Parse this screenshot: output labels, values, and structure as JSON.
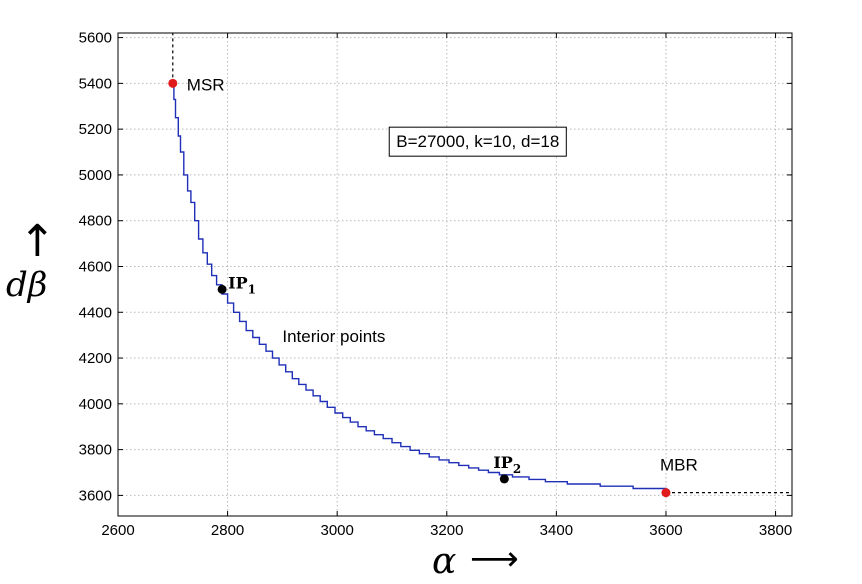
{
  "chart_data": {
    "type": "line",
    "title": "",
    "xlabel": "α",
    "ylabel": "dβ",
    "xlim": [
      2600,
      3830
    ],
    "ylim": [
      3510,
      5620
    ],
    "xticks": [
      2600,
      2800,
      3000,
      3200,
      3400,
      3600,
      3800
    ],
    "yticks": [
      3600,
      3800,
      4000,
      4200,
      4400,
      4600,
      4800,
      5000,
      5200,
      5400,
      5600
    ],
    "grid": true,
    "series": [
      {
        "style": "stair-line",
        "color": "#1f2fb8",
        "x": [
          2700,
          2702,
          2705,
          2710,
          2714,
          2720,
          2727,
          2733,
          2740,
          2747,
          2755,
          2763,
          2771,
          2780,
          2790,
          2800,
          2811,
          2822,
          2834,
          2846,
          2858,
          2870,
          2882,
          2894,
          2906,
          2918,
          2930,
          2943,
          2956,
          2969,
          2982,
          2996,
          3010,
          3024,
          3038,
          3053,
          3068,
          3084,
          3100,
          3116,
          3133,
          3150,
          3168,
          3186,
          3204,
          3222,
          3240,
          3258,
          3276,
          3296,
          3320,
          3350,
          3380,
          3420,
          3480,
          3540,
          3600
        ],
        "y": [
          5400,
          5330,
          5250,
          5170,
          5100,
          5000,
          4930,
          4880,
          4800,
          4720,
          4660,
          4610,
          4560,
          4520,
          4480,
          4440,
          4400,
          4360,
          4320,
          4290,
          4260,
          4230,
          4200,
          4170,
          4140,
          4110,
          4085,
          4060,
          4035,
          4010,
          3985,
          3960,
          3940,
          3920,
          3900,
          3882,
          3865,
          3848,
          3830,
          3813,
          3797,
          3782,
          3768,
          3755,
          3743,
          3731,
          3720,
          3710,
          3700,
          3690,
          3681,
          3670,
          3660,
          3650,
          3640,
          3630,
          3620
        ]
      },
      {
        "style": "dashed-extension",
        "color": "#000000",
        "x": [
          2700,
          2700
        ],
        "y": [
          5400,
          5620
        ]
      },
      {
        "style": "dashed-extension",
        "color": "#000000",
        "x": [
          3600,
          3830
        ],
        "y": [
          3612,
          3612
        ]
      }
    ],
    "points": [
      {
        "label": "MSR",
        "x": 2700,
        "y": 5400,
        "color": "#e11b1b"
      },
      {
        "label": "IP",
        "sub": "1",
        "x": 2790,
        "y": 4500,
        "color": "#000000"
      },
      {
        "label": "IP",
        "sub": "2",
        "x": 3305,
        "y": 3672,
        "color": "#000000"
      },
      {
        "label": "MBR",
        "x": 3600,
        "y": 3612,
        "color": "#e11b1b"
      }
    ],
    "annotations": [
      {
        "text": "B=27000,  k=10,  d=18",
        "boxed": true,
        "x": 3095,
        "y": 5095
      },
      {
        "text": "Interior points",
        "boxed": false,
        "x": 2900,
        "y": 4270
      }
    ],
    "xlabel_arrow": "⟶",
    "ylabel_arrow": "↑"
  }
}
